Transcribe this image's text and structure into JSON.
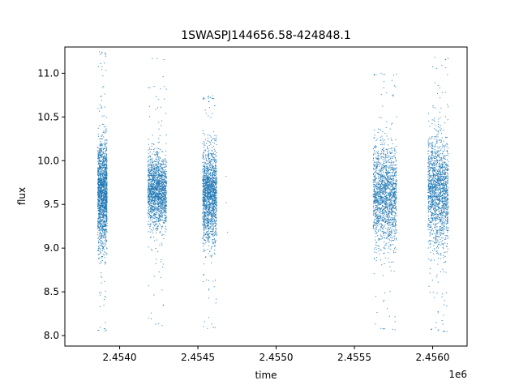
{
  "chart_data": {
    "type": "scatter",
    "title": "1SWASPJ144656.58-424848.1",
    "xlabel": "time",
    "ylabel": "flux",
    "x_offset_label": "1e6",
    "xlim": [
      2.45365,
      2.45622
    ],
    "ylim": [
      7.88,
      11.3
    ],
    "x_ticks": [
      2.454,
      2.4545,
      2.455,
      2.4555,
      2.456
    ],
    "x_tick_labels": [
      "2.4540",
      "2.4545",
      "2.4550",
      "2.4555",
      "2.4560"
    ],
    "y_ticks": [
      8.0,
      8.5,
      9.0,
      9.5,
      10.0,
      10.5,
      11.0
    ],
    "y_tick_labels": [
      "8.0",
      "8.5",
      "9.0",
      "9.5",
      "10.0",
      "10.5",
      "11.0"
    ],
    "grid": false,
    "point_color": "#1f77b4",
    "series": [
      {
        "segments": [
          {
            "x_start": 2.45386,
            "x_end": 2.45392,
            "y_center": 9.62,
            "y_spread": 0.3,
            "y_min": 8.05,
            "y_max": 11.25
          },
          {
            "x_start": 2.45418,
            "x_end": 2.4543,
            "y_center": 9.65,
            "y_spread": 0.2,
            "y_min": 8.1,
            "y_max": 11.2
          },
          {
            "x_start": 2.45453,
            "x_end": 2.45462,
            "y_center": 9.6,
            "y_spread": 0.25,
            "y_min": 8.08,
            "y_max": 10.75
          },
          {
            "x_start": 2.45562,
            "x_end": 2.45577,
            "y_center": 9.6,
            "y_spread": 0.28,
            "y_min": 8.05,
            "y_max": 11.02
          },
          {
            "x_start": 2.45597,
            "x_end": 2.4561,
            "y_center": 9.65,
            "y_spread": 0.3,
            "y_min": 8.03,
            "y_max": 11.2
          }
        ],
        "stray_points": [
          {
            "x": 2.45468,
            "y": 9.82
          },
          {
            "x": 2.45468,
            "y": 9.52
          },
          {
            "x": 2.45469,
            "y": 9.18
          }
        ]
      }
    ]
  }
}
